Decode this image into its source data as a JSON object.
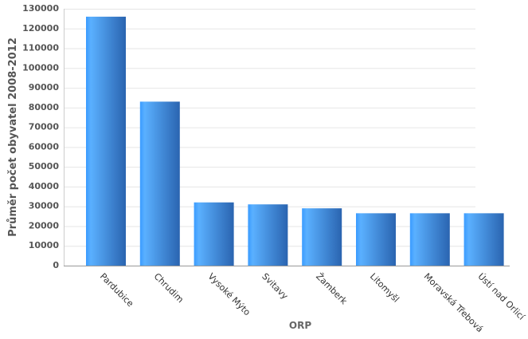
{
  "chart_data": {
    "type": "bar",
    "x_label": "ORP",
    "y_label": "Průměr počet obyvatel 2008-2012",
    "categories": [
      "Pardubice",
      "Chrudim",
      "Vysoké Mýto",
      "Svitavy",
      "Žamberk",
      "Litomyšl",
      "Moravská Třebová",
      "Ústí nad Orlicí"
    ],
    "values": [
      126000,
      83000,
      32000,
      31000,
      29000,
      26500,
      26500,
      26500
    ],
    "color": "#3a9bff",
    "ylim": [
      0,
      130000
    ],
    "yticks": [
      0,
      10000,
      20000,
      30000,
      40000,
      50000,
      60000,
      70000,
      80000,
      90000,
      100000,
      110000,
      120000,
      130000
    ],
    "grid": true
  }
}
